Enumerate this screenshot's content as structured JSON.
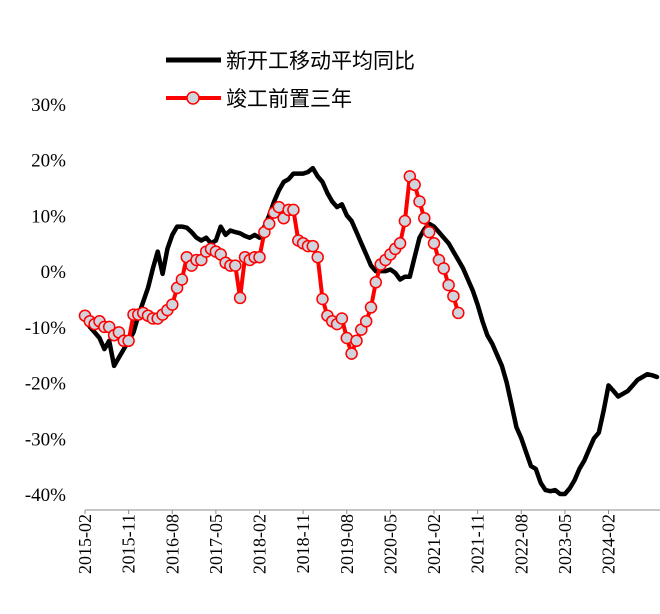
{
  "chart_data": {
    "type": "line",
    "title": "",
    "xlabel": "",
    "ylabel": "",
    "ylim": [
      -0.4,
      0.3
    ],
    "yticks": [
      "30%",
      "20%",
      "10%",
      "0%",
      "-10%",
      "-20%",
      "-30%",
      "-40%"
    ],
    "ytick_values": [
      0.3,
      0.2,
      0.1,
      0.0,
      -0.1,
      -0.2,
      -0.3,
      -0.4
    ],
    "x_start": "2015-02",
    "x_end": "2024-12",
    "xticks": [
      "2015-02",
      "2015-11",
      "2016-08",
      "2017-05",
      "2018-02",
      "2018-11",
      "2019-08",
      "2020-05",
      "2021-02",
      "2021-11",
      "2022-08",
      "2023-05",
      "2024-02"
    ],
    "grid": false,
    "legend_position": "top",
    "series": [
      {
        "name": "新开工移动平均同比",
        "color": "#000000",
        "marker": "none",
        "points": [
          [
            "2015-02",
            -0.085
          ],
          [
            "2015-03",
            -0.1
          ],
          [
            "2015-04",
            -0.11
          ],
          [
            "2015-05",
            -0.12
          ],
          [
            "2015-06",
            -0.14
          ],
          [
            "2015-07",
            -0.125
          ],
          [
            "2015-08",
            -0.17
          ],
          [
            "2015-09",
            -0.155
          ],
          [
            "2015-10",
            -0.14
          ],
          [
            "2015-11",
            -0.125
          ],
          [
            "2015-12",
            -0.11
          ],
          [
            "2016-01",
            -0.08
          ],
          [
            "2016-02",
            -0.055
          ],
          [
            "2016-03",
            -0.03
          ],
          [
            "2016-04",
            0.005
          ],
          [
            "2016-05",
            0.035
          ],
          [
            "2016-06",
            -0.005
          ],
          [
            "2016-07",
            0.04
          ],
          [
            "2016-08",
            0.065
          ],
          [
            "2016-09",
            0.08
          ],
          [
            "2016-10",
            0.08
          ],
          [
            "2016-11",
            0.078
          ],
          [
            "2016-12",
            0.07
          ],
          [
            "2017-01",
            0.06
          ],
          [
            "2017-02",
            0.055
          ],
          [
            "2017-03",
            0.06
          ],
          [
            "2017-04",
            0.05
          ],
          [
            "2017-05",
            0.055
          ],
          [
            "2017-06",
            0.08
          ],
          [
            "2017-07",
            0.065
          ],
          [
            "2017-08",
            0.073
          ],
          [
            "2017-09",
            0.07
          ],
          [
            "2017-10",
            0.068
          ],
          [
            "2017-11",
            0.063
          ],
          [
            "2017-12",
            0.06
          ],
          [
            "2018-01",
            0.065
          ],
          [
            "2018-02",
            0.06
          ],
          [
            "2018-03",
            0.08
          ],
          [
            "2018-04",
            0.1
          ],
          [
            "2018-05",
            0.125
          ],
          [
            "2018-06",
            0.145
          ],
          [
            "2018-07",
            0.16
          ],
          [
            "2018-08",
            0.165
          ],
          [
            "2018-09",
            0.175
          ],
          [
            "2018-10",
            0.175
          ],
          [
            "2018-11",
            0.175
          ],
          [
            "2018-12",
            0.178
          ],
          [
            "2019-01",
            0.185
          ],
          [
            "2019-02",
            0.17
          ],
          [
            "2019-03",
            0.16
          ],
          [
            "2019-04",
            0.14
          ],
          [
            "2019-05",
            0.125
          ],
          [
            "2019-06",
            0.115
          ],
          [
            "2019-07",
            0.12
          ],
          [
            "2019-08",
            0.1
          ],
          [
            "2019-09",
            0.09
          ],
          [
            "2019-10",
            0.07
          ],
          [
            "2019-11",
            0.05
          ],
          [
            "2019-12",
            0.03
          ],
          [
            "2020-01",
            0.01
          ],
          [
            "2020-02",
            0.0
          ],
          [
            "2020-03",
            0.0
          ],
          [
            "2020-04",
            0.0
          ],
          [
            "2020-05",
            0.003
          ],
          [
            "2020-06",
            -0.003
          ],
          [
            "2020-07",
            -0.015
          ],
          [
            "2020-08",
            -0.01
          ],
          [
            "2020-09",
            -0.01
          ],
          [
            "2020-10",
            0.025
          ],
          [
            "2020-11",
            0.06
          ],
          [
            "2020-12",
            0.075
          ],
          [
            "2021-01",
            0.085
          ],
          [
            "2021-02",
            0.08
          ],
          [
            "2021-03",
            0.07
          ],
          [
            "2021-04",
            0.06
          ],
          [
            "2021-05",
            0.05
          ],
          [
            "2021-06",
            0.035
          ],
          [
            "2021-07",
            0.02
          ],
          [
            "2021-08",
            0.005
          ],
          [
            "2021-09",
            -0.015
          ],
          [
            "2021-10",
            -0.035
          ],
          [
            "2021-11",
            -0.06
          ],
          [
            "2021-12",
            -0.09
          ],
          [
            "2022-01",
            -0.115
          ],
          [
            "2022-02",
            -0.13
          ],
          [
            "2022-03",
            -0.15
          ],
          [
            "2022-04",
            -0.17
          ],
          [
            "2022-05",
            -0.2
          ],
          [
            "2022-06",
            -0.24
          ],
          [
            "2022-07",
            -0.28
          ],
          [
            "2022-08",
            -0.3
          ],
          [
            "2022-09",
            -0.325
          ],
          [
            "2022-10",
            -0.35
          ],
          [
            "2022-11",
            -0.355
          ],
          [
            "2022-12",
            -0.38
          ],
          [
            "2023-01",
            -0.393
          ],
          [
            "2023-02",
            -0.395
          ],
          [
            "2023-03",
            -0.393
          ],
          [
            "2023-04",
            -0.4
          ],
          [
            "2023-05",
            -0.4
          ],
          [
            "2023-06",
            -0.39
          ],
          [
            "2023-07",
            -0.375
          ],
          [
            "2023-08",
            -0.355
          ],
          [
            "2023-09",
            -0.34
          ],
          [
            "2023-10",
            -0.32
          ],
          [
            "2023-11",
            -0.3
          ],
          [
            "2023-12",
            -0.29
          ],
          [
            "2024-01",
            -0.25
          ],
          [
            "2024-02",
            -0.205
          ],
          [
            "2024-03",
            -0.215
          ],
          [
            "2024-04",
            -0.225
          ],
          [
            "2024-05",
            -0.22
          ],
          [
            "2024-06",
            -0.215
          ],
          [
            "2024-07",
            -0.205
          ],
          [
            "2024-08",
            -0.195
          ],
          [
            "2024-09",
            -0.19
          ],
          [
            "2024-10",
            -0.185
          ],
          [
            "2024-11",
            -0.187
          ],
          [
            "2024-12",
            -0.19
          ]
        ]
      },
      {
        "name": "竣工前置三年",
        "color": "#ff0000",
        "marker": "circle",
        "points": [
          [
            "2015-02",
            -0.08
          ],
          [
            "2015-03",
            -0.09
          ],
          [
            "2015-04",
            -0.095
          ],
          [
            "2015-05",
            -0.09
          ],
          [
            "2015-06",
            -0.1
          ],
          [
            "2015-07",
            -0.1
          ],
          [
            "2015-08",
            -0.115
          ],
          [
            "2015-09",
            -0.11
          ],
          [
            "2015-10",
            -0.125
          ],
          [
            "2015-11",
            -0.125
          ],
          [
            "2015-12",
            -0.078
          ],
          [
            "2016-01",
            -0.078
          ],
          [
            "2016-02",
            -0.075
          ],
          [
            "2016-03",
            -0.08
          ],
          [
            "2016-04",
            -0.085
          ],
          [
            "2016-05",
            -0.085
          ],
          [
            "2016-06",
            -0.078
          ],
          [
            "2016-07",
            -0.07
          ],
          [
            "2016-08",
            -0.06
          ],
          [
            "2016-09",
            -0.03
          ],
          [
            "2016-10",
            -0.015
          ],
          [
            "2016-11",
            0.025
          ],
          [
            "2016-12",
            0.01
          ],
          [
            "2017-01",
            0.02
          ],
          [
            "2017-02",
            0.02
          ],
          [
            "2017-03",
            0.035
          ],
          [
            "2017-04",
            0.04
          ],
          [
            "2017-05",
            0.035
          ],
          [
            "2017-06",
            0.03
          ],
          [
            "2017-07",
            0.015
          ],
          [
            "2017-08",
            0.01
          ],
          [
            "2017-09",
            0.01
          ],
          [
            "2017-10",
            -0.048
          ],
          [
            "2017-11",
            0.025
          ],
          [
            "2017-12",
            0.02
          ],
          [
            "2018-01",
            0.025
          ],
          [
            "2018-02",
            0.025
          ],
          [
            "2018-03",
            0.07
          ],
          [
            "2018-04",
            0.085
          ],
          [
            "2018-05",
            0.105
          ],
          [
            "2018-06",
            0.115
          ],
          [
            "2018-07",
            0.095
          ],
          [
            "2018-08",
            0.11
          ],
          [
            "2018-09",
            0.11
          ],
          [
            "2018-10",
            0.055
          ],
          [
            "2018-11",
            0.05
          ],
          [
            "2018-12",
            0.045
          ],
          [
            "2019-01",
            0.045
          ],
          [
            "2019-02",
            0.025
          ],
          [
            "2019-03",
            -0.05
          ],
          [
            "2019-04",
            -0.08
          ],
          [
            "2019-05",
            -0.09
          ],
          [
            "2019-06",
            -0.095
          ],
          [
            "2019-07",
            -0.085
          ],
          [
            "2019-08",
            -0.12
          ],
          [
            "2019-09",
            -0.148
          ],
          [
            "2019-10",
            -0.125
          ],
          [
            "2019-11",
            -0.105
          ],
          [
            "2019-12",
            -0.09
          ],
          [
            "2020-01",
            -0.065
          ],
          [
            "2020-02",
            -0.02
          ],
          [
            "2020-03",
            0.012
          ],
          [
            "2020-04",
            0.02
          ],
          [
            "2020-05",
            0.03
          ],
          [
            "2020-06",
            0.04
          ],
          [
            "2020-07",
            0.05
          ],
          [
            "2020-08",
            0.09
          ],
          [
            "2020-09",
            0.17
          ],
          [
            "2020-10",
            0.155
          ],
          [
            "2020-11",
            0.125
          ],
          [
            "2020-12",
            0.095
          ],
          [
            "2021-01",
            0.07
          ],
          [
            "2021-02",
            0.05
          ],
          [
            "2021-03",
            0.02
          ],
          [
            "2021-04",
            0.005
          ],
          [
            "2021-05",
            -0.025
          ],
          [
            "2021-06",
            -0.045
          ],
          [
            "2021-07",
            -0.075
          ]
        ]
      }
    ]
  }
}
